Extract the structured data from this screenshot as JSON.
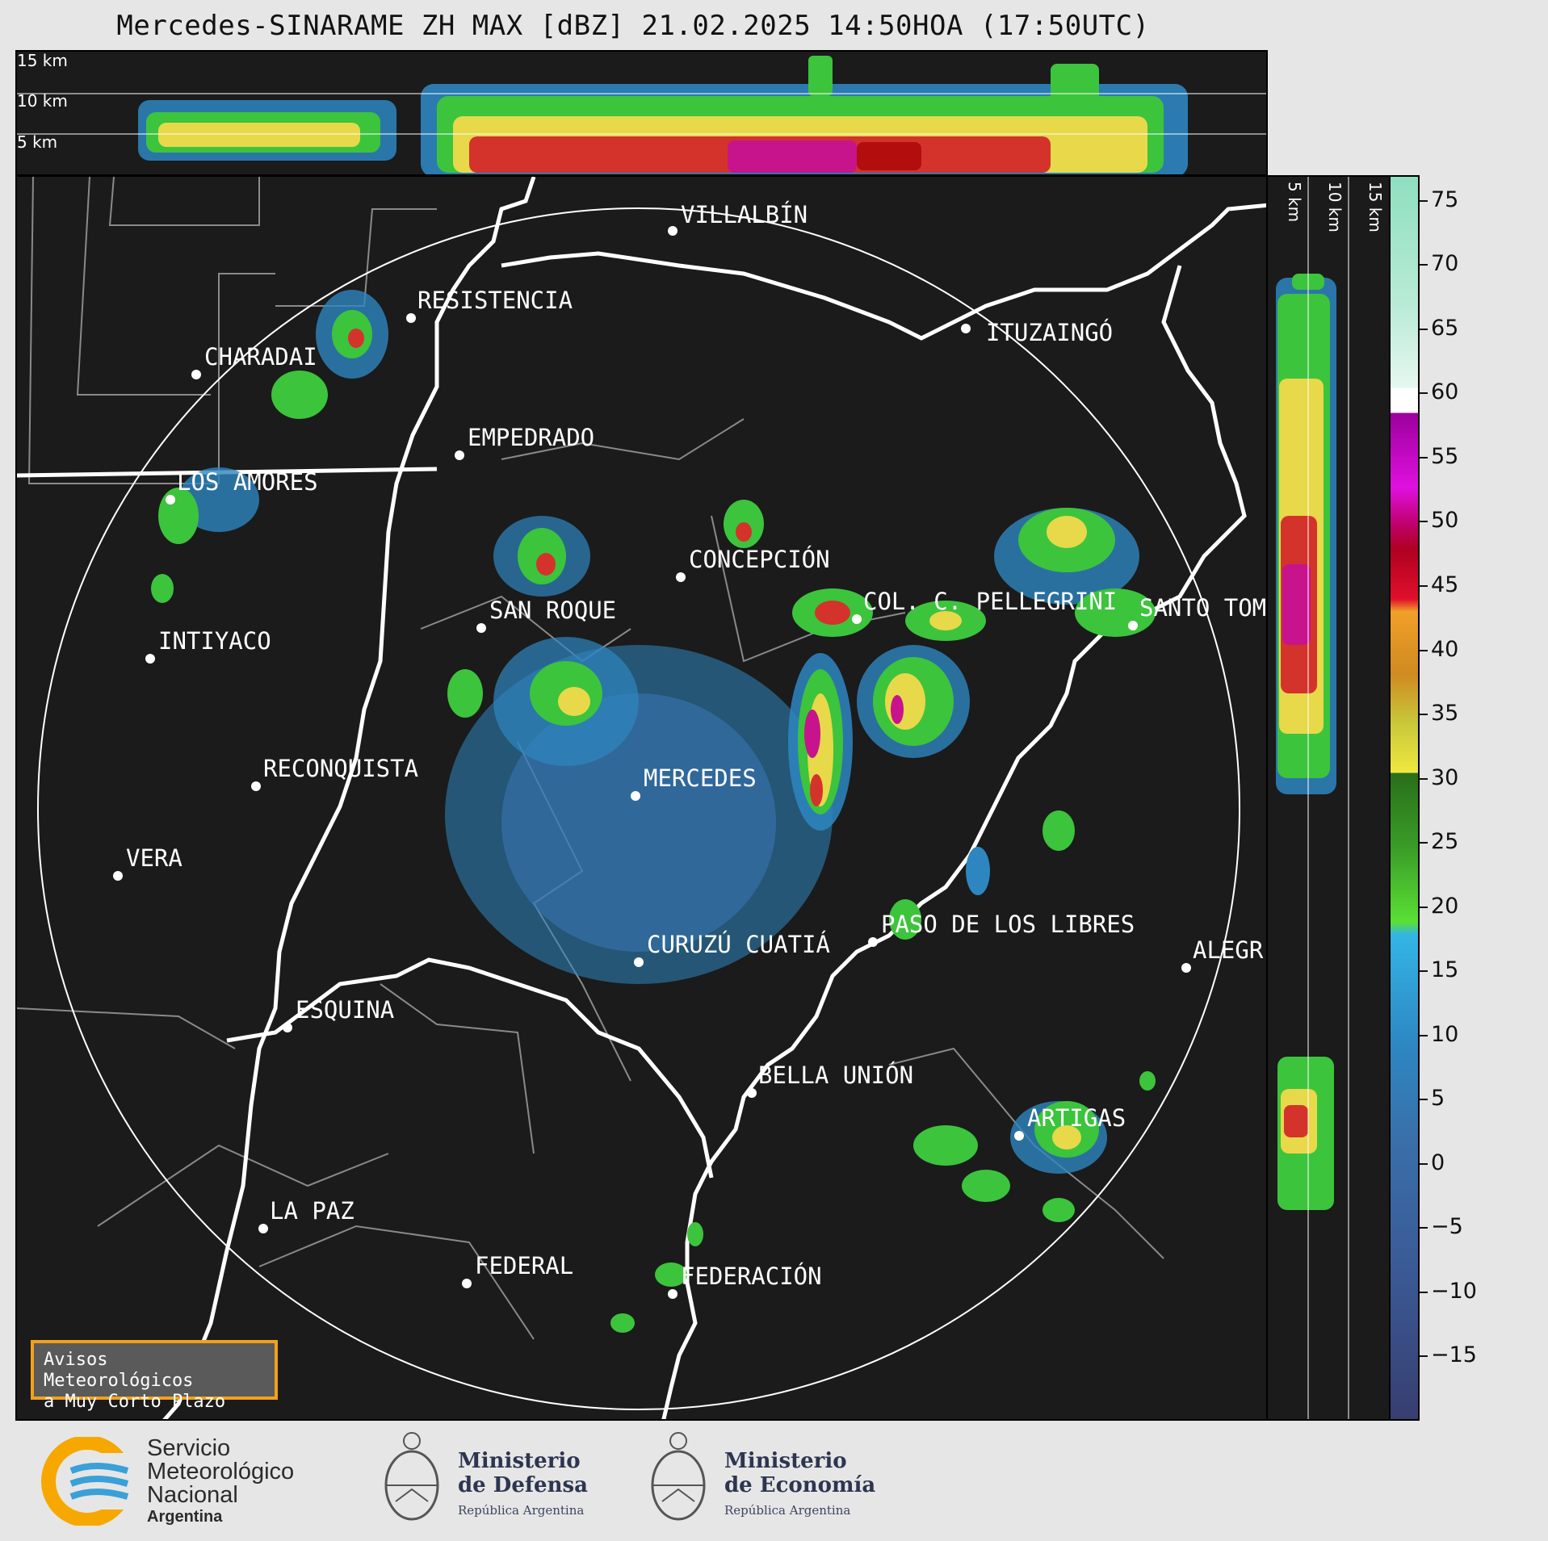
{
  "title": "Mercedes-SINARAME ZH MAX [dBZ] 21.02.2025 14:50HOA (17:50UTC)",
  "top_panel": {
    "km_labels": [
      "15 km",
      "10 km",
      "5 km"
    ]
  },
  "side_panel": {
    "km_labels": [
      "5 km",
      "10 km",
      "15 km"
    ]
  },
  "colorbar": {
    "unit": "dBZ",
    "ticks": [
      "75",
      "70",
      "65",
      "60",
      "55",
      "50",
      "45",
      "40",
      "35",
      "30",
      "25",
      "20",
      "15",
      "10",
      "5",
      "0",
      "−5",
      "−10",
      "−15"
    ],
    "tick_values": [
      75,
      70,
      65,
      60,
      55,
      50,
      45,
      40,
      35,
      30,
      25,
      20,
      15,
      10,
      5,
      0,
      -5,
      -10,
      -15
    ],
    "range": [
      -20,
      77
    ]
  },
  "cities": [
    {
      "name": "VILLALBÍN"
    },
    {
      "name": "RESISTENCIA"
    },
    {
      "name": "CHARADAI"
    },
    {
      "name": "ITUZAINGÓ"
    },
    {
      "name": "EMPEDRADO"
    },
    {
      "name": "LOS AMORES"
    },
    {
      "name": "CONCEPCIÓN"
    },
    {
      "name": "SAN ROQUE"
    },
    {
      "name": "COL. C. PELLEGRINI"
    },
    {
      "name": "SANTO TOM"
    },
    {
      "name": "INTIYACO"
    },
    {
      "name": "RECONQUISTA"
    },
    {
      "name": "MERCEDES"
    },
    {
      "name": "VERA"
    },
    {
      "name": "PASO DE LOS LIBRES"
    },
    {
      "name": "CURUZÚ CUATIÁ"
    },
    {
      "name": "ALEGR"
    },
    {
      "name": "ESQUINA"
    },
    {
      "name": "BELLA UNIÓN"
    },
    {
      "name": "ARTIGAS"
    },
    {
      "name": "LA PAZ"
    },
    {
      "name": "FEDERAL"
    },
    {
      "name": "FEDERACIÓN"
    }
  ],
  "notice": {
    "line1": "Avisos Meteorológicos",
    "line2": "a Muy Corto Plazo"
  },
  "logos": {
    "smn": {
      "line1": "Servicio",
      "line2": "Meteorológico",
      "line3": "Nacional",
      "line4": "Argentina"
    },
    "defensa": {
      "line1": "Ministerio",
      "line2": "de Defensa",
      "sub": "República Argentina"
    },
    "economia": {
      "line1": "Ministerio",
      "line2": "de Economía",
      "sub": "República Argentina"
    }
  }
}
